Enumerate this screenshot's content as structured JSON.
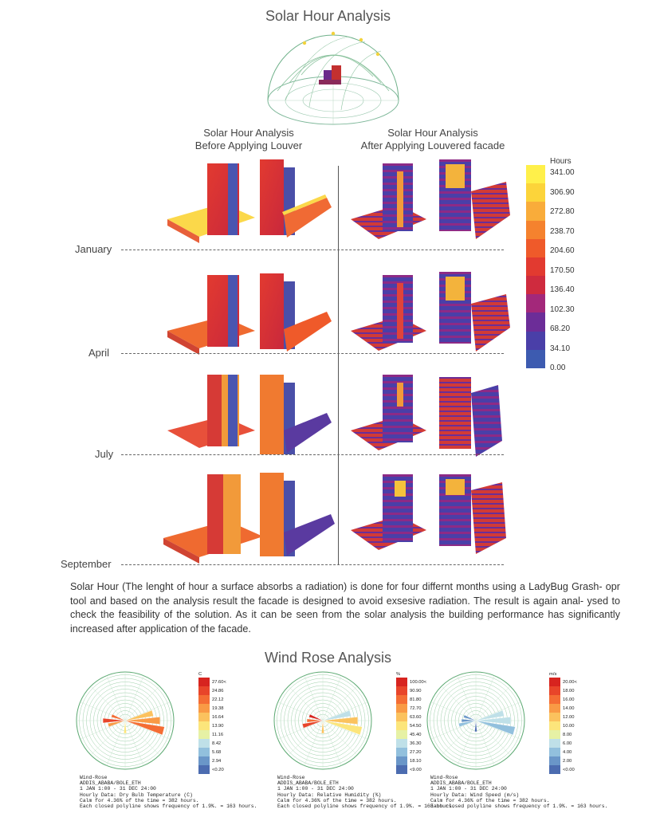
{
  "solar": {
    "title": "Solar Hour Analysis",
    "col_before_line1": "Solar Hour Analysis",
    "col_before_line2": "Before Applying Louver",
    "col_after_line1": "Solar Hour Analysis",
    "col_after_line2": "After Applying Louvered facade",
    "months": [
      "January",
      "April",
      "July",
      "September"
    ],
    "legend": {
      "title": "Hours",
      "labels": [
        "341.00",
        "306.90",
        "272.80",
        "238.70",
        "204.60",
        "170.50",
        "136.40",
        "102.30",
        "68.20",
        "34.10",
        "0.00"
      ],
      "colors": [
        "#fff04a",
        "#fcd43a",
        "#f9ac3a",
        "#f5822e",
        "#ef5a2a",
        "#e23a30",
        "#cf2b3e",
        "#a3287a",
        "#6c2d98",
        "#4a3fa8",
        "#3d5bb0"
      ]
    },
    "paragraph": "Solar Hour (The lenght of hour a surface absorbs a radiation) is done for four differnt months using a LadyBug Grash- opr tool and based on the analysis  result the facade is designed to avoid exsesive radiation. The result is again anal- ysed to check the feasibility of the solution. As it can be seen from the solar analysis the building performance has significantly increased after application of the facade."
  },
  "wind": {
    "title": "Wind Rose Analysis",
    "roses": [
      {
        "unit": "C",
        "scale": [
          "27.60<",
          "24.86",
          "22.12",
          "19.38",
          "16.64",
          "13.90",
          "11.16",
          "8.42",
          "5.68",
          "2.94",
          "<0.20"
        ],
        "caption": [
          "Wind-Rose",
          "ADDIS_ABABA/BOLE_ETH",
          "1 JAN 1:00 - 31 DEC 24:00",
          "Hourly Data: Dry Bulb Temperature (C)",
          "Calm for 4.36% of the time = 382 hours.",
          "Each closed polyline shows frequency of 1.9%. = 163 hours."
        ]
      },
      {
        "unit": "%",
        "scale": [
          "100.00<",
          "90.90",
          "81.80",
          "72.70",
          "63.60",
          "54.50",
          "45.40",
          "36.30",
          "27.20",
          "18.10",
          "<9.00"
        ],
        "caption": [
          "Wind-Rose",
          "ADDIS_ABABA/BOLE_ETH",
          "1 JAN 1:00 - 31 DEC 24:00",
          "Hourly Data: Relative Humidity (%)",
          "Calm for 4.36% of the time = 382 hours.",
          "Each closed polyline shows frequency of 1.9%. = 163 hours."
        ]
      },
      {
        "unit": "m/s",
        "scale": [
          "20.00<",
          "18.00",
          "16.00",
          "14.00",
          "12.00",
          "10.00",
          "8.00",
          "6.00",
          "4.00",
          "2.00",
          "<0.00"
        ],
        "caption": [
          "Wind-Rose",
          "ADDIS_ABABA/BOLE_ETH",
          "1 JAN 1:00 - 31 DEC 24:00",
          "Hourly Data: Wind Speed (m/s)",
          "Calm for 4.36% of the time = 382 hours.",
          "Each closed polyline shows frequency of 1.9%. = 163 hours."
        ]
      }
    ],
    "scale_colors": [
      "#d7241f",
      "#e8452a",
      "#f46d34",
      "#f99a45",
      "#fbc25e",
      "#fce57b",
      "#e6f1a5",
      "#bfe0e8",
      "#92c0dd",
      "#6a96c8",
      "#4c6cb0"
    ]
  }
}
